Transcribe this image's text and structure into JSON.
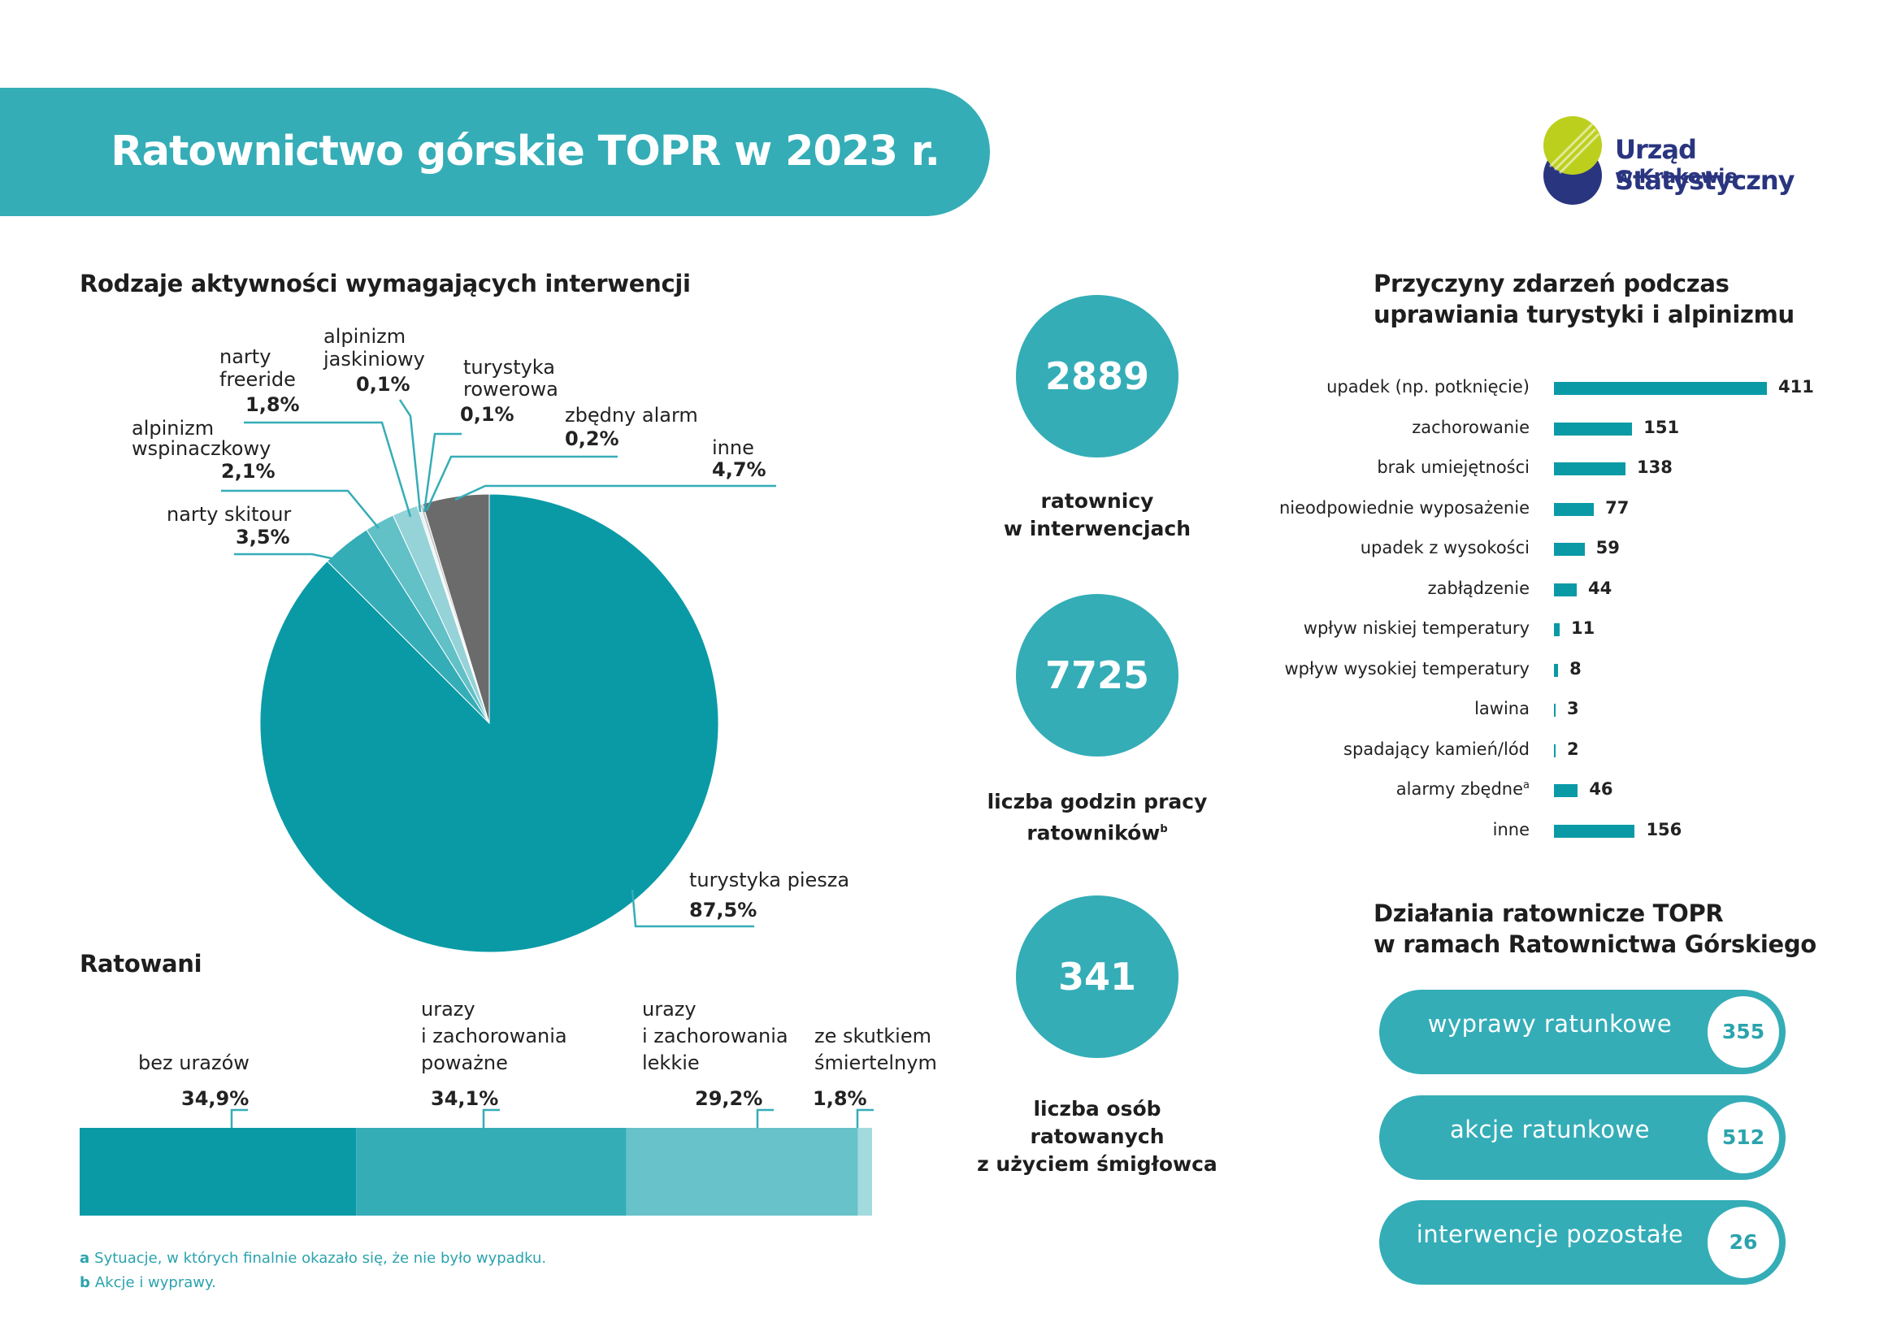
{
  "header": {
    "title": "Ratownictwo górskie TOPR w 2023 r."
  },
  "logo": {
    "line1": "Urząd Statystyczny",
    "line2": "w Krakowie",
    "color_top": "#bccf1d",
    "color_bottom": "#2a3580"
  },
  "pie_section": {
    "title": "Rodzaje aktywności wymagających interwencji",
    "chart_data": {
      "type": "pie",
      "title": "Rodzaje aktywności wymagających interwencji",
      "slices": [
        {
          "label": "turystyka piesza",
          "value": 87.5,
          "value_label": "87,5%",
          "color": "#0a9aa6"
        },
        {
          "label": "narty skitour",
          "value": 3.5,
          "value_label": "3,5%",
          "color": "#34adb7"
        },
        {
          "label": "alpinizm wspinaczkowy",
          "value": 2.1,
          "value_label": "2,1%",
          "color": "#62c0c7"
        },
        {
          "label": "narty freeride",
          "value": 1.8,
          "value_label": "1,8%",
          "color": "#95d3d8"
        },
        {
          "label": "alpinizm jaskiniowy",
          "value": 0.1,
          "value_label": "0,1%",
          "color": "#b7e0e3"
        },
        {
          "label": "turystyka rowerowa",
          "value": 0.1,
          "value_label": "0,1%",
          "color": "#cfe9eb"
        },
        {
          "label": "zbędny alarm",
          "value": 0.2,
          "value_label": "0,2%",
          "color": "#c9c9c9"
        },
        {
          "label": "inne",
          "value": 4.7,
          "value_label": "4,7%",
          "color": "#6b6b6b"
        }
      ]
    },
    "labels": {
      "turystyka_piesza": "turystyka piesza",
      "narty_skitour": "narty skitour",
      "alp_wsp_1": "alpinizm",
      "alp_wsp_2": "wspinaczkowy",
      "narty_fr_1": "narty",
      "narty_fr_2": "freeride",
      "alp_jas_1": "alpinizm",
      "alp_jas_2": "jaskiniowy",
      "tur_row_1": "turystyka",
      "tur_row_2": "rowerowa",
      "zbedny": "zbędny alarm",
      "inne": "inne"
    }
  },
  "rescued": {
    "title": "Ratowani",
    "chart_data": {
      "type": "bar",
      "orientation": "stacked-horizontal",
      "title": "Ratowani",
      "segments": [
        {
          "label": "bez urazów",
          "value": 34.9,
          "value_label": "34,9%",
          "color": "#0a9aa6"
        },
        {
          "label": "urazy i zachorowania poważne",
          "value": 34.1,
          "value_label": "34,1%",
          "color": "#34adb7"
        },
        {
          "label": "urazy i zachorowania lekkie",
          "value": 29.2,
          "value_label": "29,2%",
          "color": "#67c2c9"
        },
        {
          "label": "ze skutkiem śmiertelnym",
          "value": 1.8,
          "value_label": "1,8%",
          "color": "#a3dade"
        }
      ]
    },
    "labels": {
      "s1": "bez urazów",
      "s2_1": "urazy",
      "s2_2": "i zachorowania",
      "s2_3": "poważne",
      "s3_1": "urazy",
      "s3_2": "i zachorowania",
      "s3_3": "lekkie",
      "s4_1": "ze skutkiem",
      "s4_2": "śmiertelnym"
    }
  },
  "kpis": [
    {
      "value": "2889",
      "label_1": "ratownicy",
      "label_2": "w interwencjach",
      "sup": ""
    },
    {
      "value": "7725",
      "label_1": "liczba godzin pracy",
      "label_2": "ratowników",
      "sup": "b"
    },
    {
      "value": "341",
      "label_1": "liczba osób ratowanych",
      "label_2": "z użyciem śmigłowca",
      "sup": ""
    }
  ],
  "causes": {
    "title_1": "Przyczyny zdarzeń podczas",
    "title_2": "uprawiania turystyki i alpinizmu",
    "chart_data": {
      "type": "bar",
      "orientation": "horizontal",
      "title": "Przyczyny zdarzeń podczas uprawiania turystyki i alpinizmu",
      "categories": [
        "upadek (np. potknięcie)",
        "zachorowanie",
        "brak umiejętności",
        "nieodpowiednie wyposażenie",
        "upadek z wysokości",
        "zabłądzenie",
        "wpływ niskiej temperatury",
        "wpływ wysokiej temperatury",
        "lawina",
        "spadający kamień/lód",
        "alarmy zbędne",
        "inne"
      ],
      "values": [
        411,
        151,
        138,
        77,
        59,
        44,
        11,
        8,
        3,
        2,
        46,
        156
      ],
      "color": "#0a9aa6"
    },
    "alarm_sup": "a"
  },
  "actions": {
    "title_1": "Działania ratownicze TOPR",
    "title_2": "w ramach Ratownictwa Górskiego",
    "items": [
      {
        "label": "wyprawy ratunkowe",
        "value": "355"
      },
      {
        "label": "akcje ratunkowe",
        "value": "512"
      },
      {
        "label": "interwencje pozostałe",
        "value": "26"
      }
    ]
  },
  "footnotes": [
    {
      "mark": "a",
      "text": "Sytuacje, w których finalnie okazało się, że nie było wypadku."
    },
    {
      "mark": "b",
      "text": "Akcje i wyprawy."
    }
  ]
}
